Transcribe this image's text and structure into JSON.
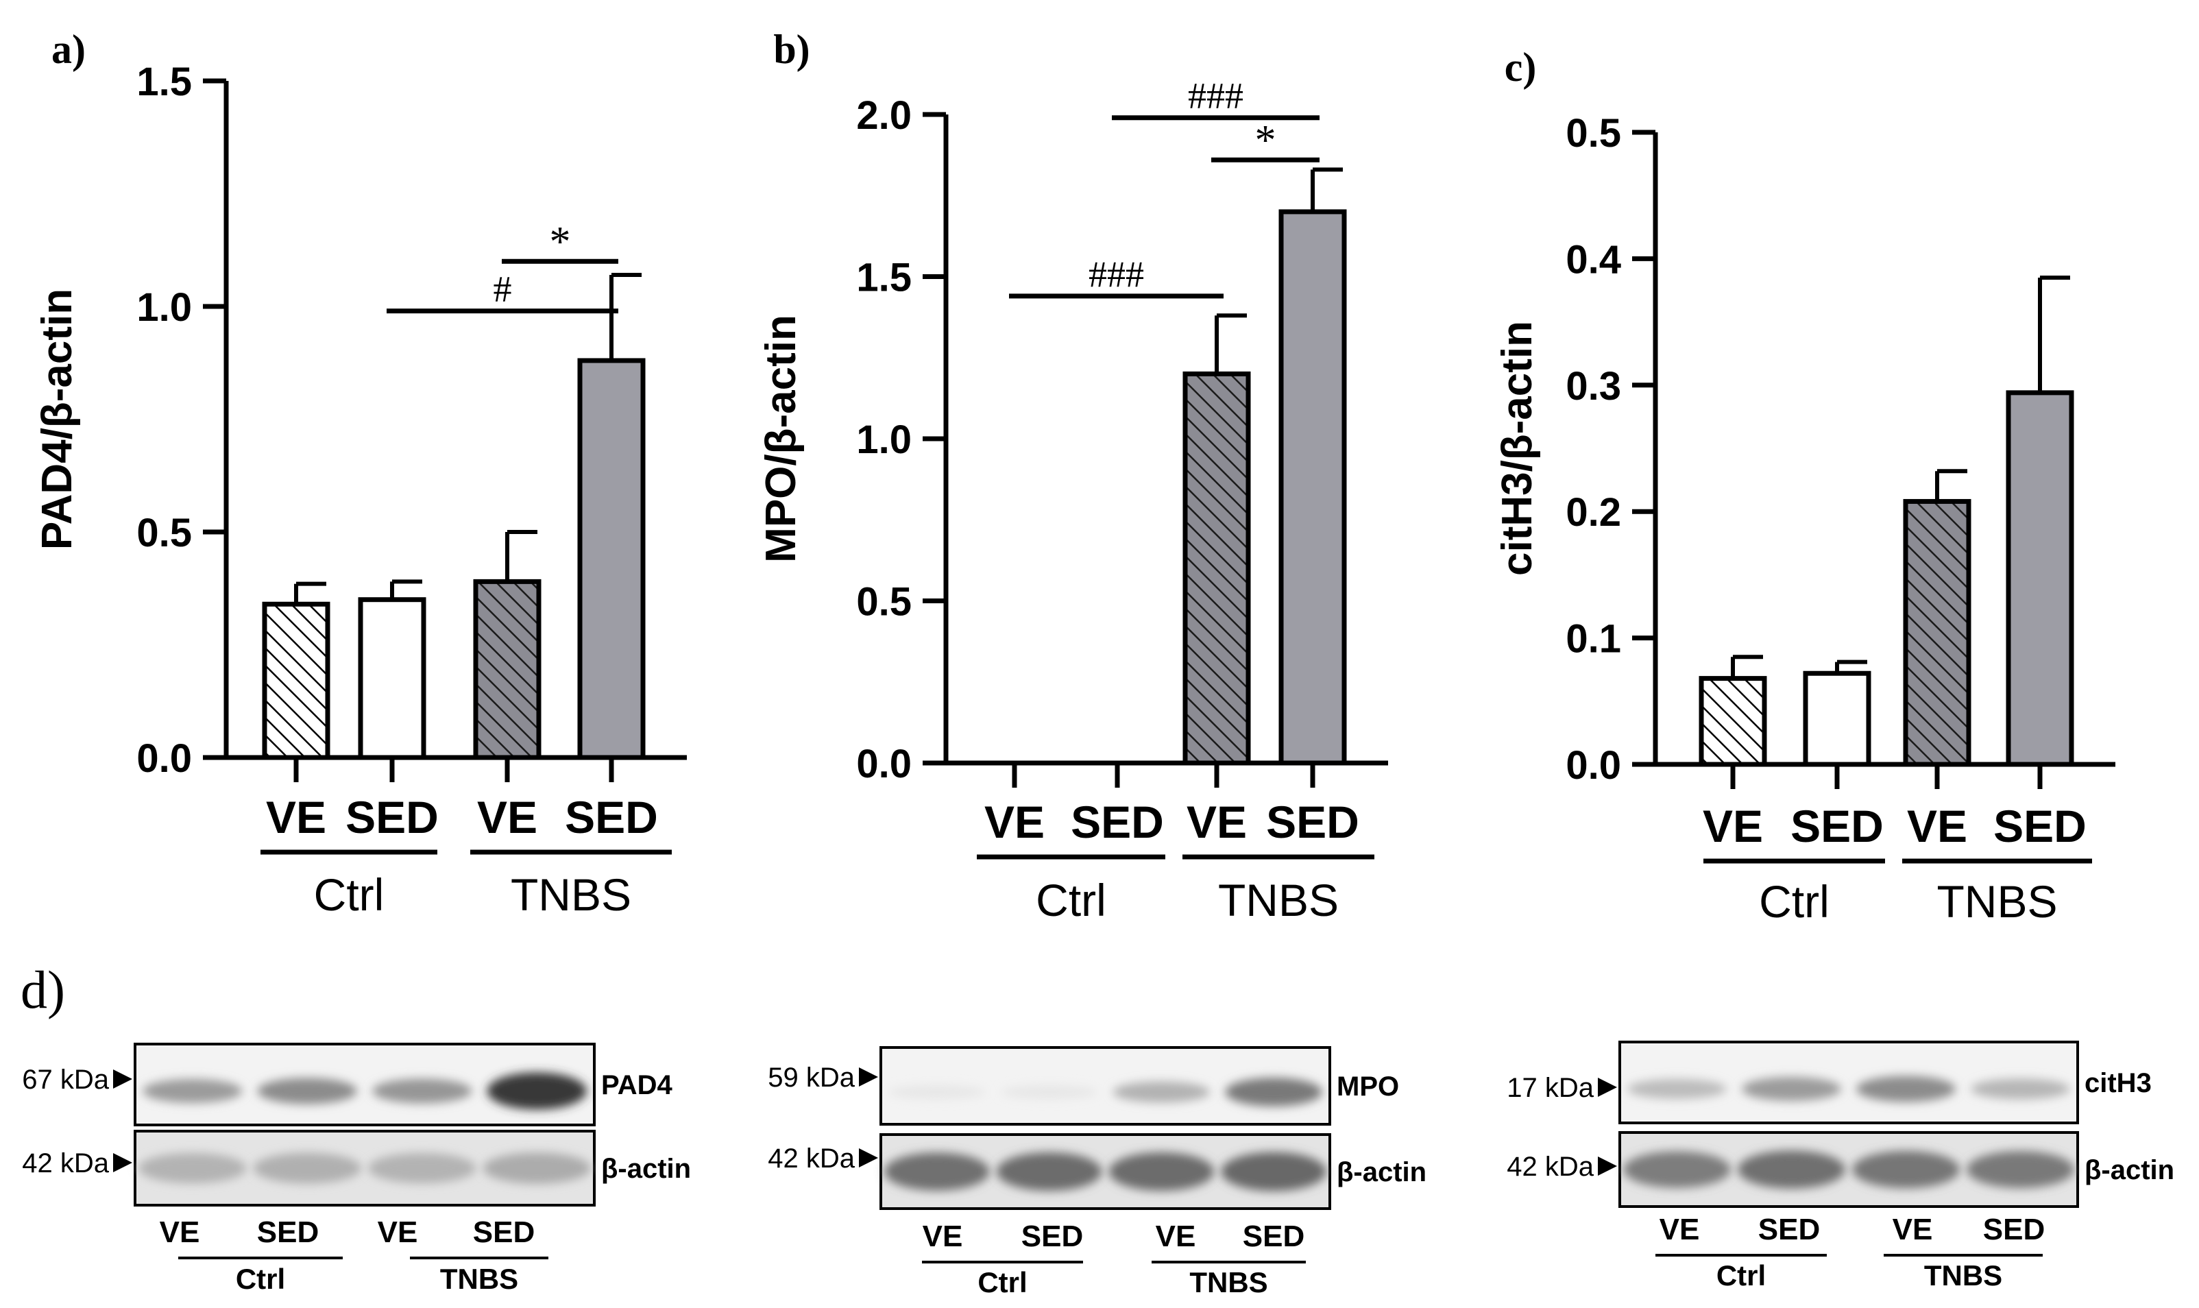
{
  "chart_data": [
    {
      "type": "bar",
      "panel_label": "a)",
      "ylabel": "PAD4/β-actin",
      "ylim": [
        0,
        1.5
      ],
      "yticks": [
        "0.0",
        "0.5",
        "1.0",
        "1.5"
      ],
      "categories": [
        "VE",
        "SED",
        "VE",
        "SED"
      ],
      "groups": [
        "Ctrl",
        "TNBS"
      ],
      "values": [
        0.34,
        0.35,
        0.39,
        0.88
      ],
      "errors": [
        0.045,
        0.04,
        0.11,
        0.19
      ],
      "annotations": [
        {
          "text": "#",
          "from": 1,
          "to": 3,
          "y": 0.99
        },
        {
          "text": "*",
          "from": 2,
          "to": 3,
          "y": 1.1
        }
      ]
    },
    {
      "type": "bar",
      "panel_label": "b)",
      "ylabel": "MPO/β-actin",
      "ylim": [
        0,
        2.0
      ],
      "yticks": [
        "0.0",
        "0.5",
        "1.0",
        "1.5",
        "2.0"
      ],
      "categories": [
        "VE",
        "SED",
        "VE",
        "SED"
      ],
      "groups": [
        "Ctrl",
        "TNBS"
      ],
      "values": [
        0,
        0,
        1.2,
        1.7
      ],
      "errors": [
        0,
        0,
        0.18,
        0.13
      ],
      "annotations": [
        {
          "text": "###",
          "from": 0,
          "to": 2,
          "y": 1.44
        },
        {
          "text": "###",
          "from": 1,
          "to": 3,
          "y": 1.99
        },
        {
          "text": "*",
          "from": 2,
          "to": 3,
          "y": 1.86
        }
      ]
    },
    {
      "type": "bar",
      "panel_label": "c)",
      "ylabel": "citH3/β-actin",
      "ylim": [
        0,
        0.5
      ],
      "yticks": [
        "0.0",
        "0.1",
        "0.2",
        "0.3",
        "0.4",
        "0.5"
      ],
      "categories": [
        "VE",
        "SED",
        "VE",
        "SED"
      ],
      "groups": [
        "Ctrl",
        "TNBS"
      ],
      "values": [
        0.068,
        0.072,
        0.208,
        0.294
      ],
      "errors": [
        0.017,
        0.009,
        0.024,
        0.091
      ],
      "annotations": []
    }
  ],
  "blots": {
    "panel_label": "d)",
    "items": [
      {
        "target": "PAD4",
        "target_kda": "67 kDa",
        "loading": "β-actin",
        "loading_kda": "42 kDa",
        "lanes": [
          "VE",
          "SED",
          "VE",
          "SED"
        ],
        "groups": [
          "Ctrl",
          "TNBS"
        ],
        "target_intensity": [
          0.42,
          0.5,
          0.45,
          0.95
        ],
        "loading_intensity": [
          0.3,
          0.32,
          0.3,
          0.34
        ]
      },
      {
        "target": "MPO",
        "target_kda": "59 kDa",
        "loading": "β-actin",
        "loading_kda": "42 kDa",
        "lanes": [
          "VE",
          "SED",
          "VE",
          "SED"
        ],
        "groups": [
          "Ctrl",
          "TNBS"
        ],
        "target_intensity": [
          0.02,
          0.02,
          0.3,
          0.6
        ],
        "loading_intensity": [
          0.7,
          0.72,
          0.72,
          0.74
        ]
      },
      {
        "target": "citH3",
        "target_kda": "17 kDa",
        "loading": "β-actin",
        "loading_kda": "42 kDa",
        "lanes": [
          "VE",
          "SED",
          "VE",
          "SED"
        ],
        "groups": [
          "Ctrl",
          "TNBS"
        ],
        "target_intensity": [
          0.25,
          0.42,
          0.5,
          0.28
        ],
        "loading_intensity": [
          0.62,
          0.7,
          0.66,
          0.64
        ]
      }
    ]
  },
  "colors": {
    "bar_ctrl": "#ffffff",
    "bar_tnbs": "#9d9da5",
    "hatch_tnbs_bg": "#8c8c94",
    "axis": "#000000"
  }
}
